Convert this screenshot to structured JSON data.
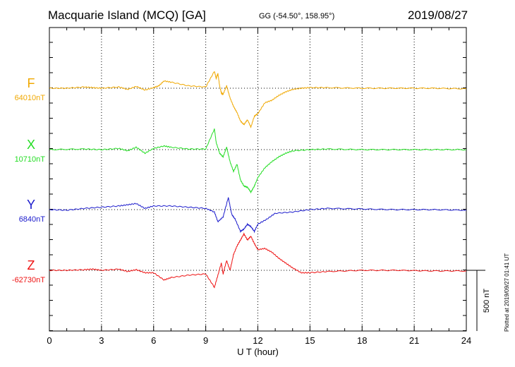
{
  "header": {
    "title": "Macquarie Island (MCQ)  [GA]",
    "coords": "GG (-54.50°, 158.95°)",
    "date": "2019/08/27"
  },
  "footer": {
    "plotted": "Plotted at 2019/09/27 01:41 UT"
  },
  "chart_data": {
    "type": "line",
    "xlabel": "U T (hour)",
    "xlim": [
      0,
      24
    ],
    "xticks": [
      0,
      3,
      6,
      9,
      12,
      15,
      18,
      21,
      24
    ],
    "grid": true,
    "scale_bar": {
      "label": "500 nT",
      "value_nT": 500
    },
    "series": [
      {
        "name": "F",
        "baseline": "64010nT",
        "color": "#f0a800",
        "x": [
          0,
          1,
          2,
          2.5,
          3,
          4,
          4.5,
          5,
          5.5,
          6,
          6.3,
          6.6,
          7,
          8,
          9,
          9.5,
          9.6,
          9.7,
          9.8,
          9.9,
          10,
          10.2,
          10.4,
          10.6,
          10.8,
          11,
          11.2,
          11.4,
          11.6,
          11.8,
          12,
          12.4,
          12.8,
          13.2,
          13.6,
          14,
          14.5,
          15,
          16,
          18,
          20,
          22,
          24
        ],
        "y": [
          0,
          0,
          10,
          5,
          0,
          10,
          -10,
          15,
          -15,
          5,
          20,
          60,
          50,
          20,
          10,
          140,
          80,
          120,
          20,
          -40,
          -50,
          20,
          -80,
          -150,
          -200,
          -270,
          -300,
          -260,
          -320,
          -230,
          -210,
          -120,
          -100,
          -60,
          -30,
          -10,
          0,
          5,
          5,
          0,
          0,
          0,
          -5
        ]
      },
      {
        "name": "X",
        "baseline": "10710nT",
        "color": "#22dd22",
        "x": [
          0,
          2,
          3,
          4,
          4.5,
          5,
          5.5,
          6,
          6.6,
          7,
          8,
          9,
          9.5,
          9.6,
          9.8,
          10,
          10.2,
          10.4,
          10.6,
          10.8,
          11,
          11.2,
          11.4,
          11.6,
          11.8,
          12,
          12.4,
          12.8,
          13.2,
          13.6,
          14,
          15,
          16,
          18,
          20,
          22,
          24
        ],
        "y": [
          0,
          5,
          0,
          10,
          -10,
          20,
          -30,
          10,
          30,
          20,
          5,
          5,
          170,
          60,
          -30,
          -60,
          20,
          -100,
          -180,
          -120,
          -250,
          -300,
          -310,
          -350,
          -300,
          -230,
          -150,
          -100,
          -60,
          -30,
          -10,
          0,
          5,
          0,
          0,
          0,
          0
        ]
      },
      {
        "name": "Y",
        "baseline": "6840nT",
        "color": "#1a1acc",
        "x": [
          0,
          1,
          2,
          3,
          4,
          4.5,
          5,
          5.5,
          6,
          7,
          8,
          9,
          9.5,
          9.7,
          10,
          10.3,
          10.5,
          10.7,
          11,
          11.2,
          11.4,
          11.6,
          11.8,
          12,
          12.5,
          13,
          14,
          15,
          16,
          18,
          20,
          22,
          24
        ],
        "y": [
          0,
          -5,
          10,
          20,
          30,
          40,
          50,
          10,
          30,
          30,
          20,
          10,
          -20,
          -100,
          -60,
          100,
          -40,
          -80,
          -180,
          -160,
          -120,
          -140,
          -180,
          -120,
          -80,
          -30,
          -20,
          0,
          10,
          5,
          0,
          0,
          -5
        ]
      },
      {
        "name": "Z",
        "baseline": "-62730nT",
        "color": "#ee1111",
        "x": [
          0,
          1,
          2,
          2.5,
          3,
          4,
          4.5,
          5,
          5.5,
          6,
          6.6,
          7,
          8,
          9,
          9.5,
          9.7,
          9.9,
          10,
          10.2,
          10.4,
          10.6,
          10.8,
          11,
          11.2,
          11.4,
          11.6,
          11.8,
          12,
          12.4,
          12.8,
          13.2,
          13.6,
          14,
          14.5,
          15,
          16,
          18,
          20,
          22,
          24
        ],
        "y": [
          0,
          0,
          5,
          10,
          0,
          10,
          -10,
          5,
          -20,
          -20,
          -80,
          -60,
          -40,
          -30,
          -140,
          -40,
          60,
          -30,
          80,
          0,
          130,
          200,
          250,
          300,
          250,
          280,
          220,
          170,
          180,
          150,
          100,
          60,
          20,
          -20,
          -20,
          -10,
          0,
          0,
          -5,
          -5
        ]
      }
    ]
  }
}
